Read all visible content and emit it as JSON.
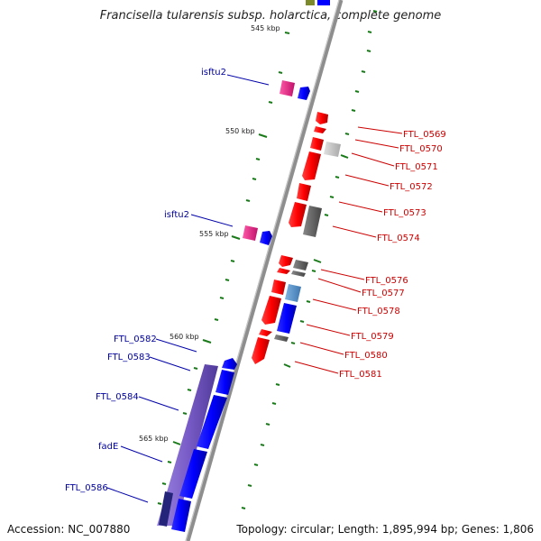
{
  "title": "Francisella tularensis subsp. holarctica, complete genome",
  "accession_label": "Accession: NC_007880",
  "topology_label": "Topology: circular; Length: 1,895,994 bp; Genes: 1,806",
  "colors": {
    "plus_strand": "#0000ff",
    "minus_strand": "#ff0000",
    "plus_label": "#000099",
    "minus_label": "#cc0000",
    "tick": "#1a7a1a",
    "operon": "#7a5cc8",
    "insertion": "#e0207a",
    "backbone": "#888888"
  },
  "ticks": [
    "545 kbp",
    "550 kbp",
    "555 kbp",
    "560 kbp",
    "565 kbp"
  ],
  "plus_labels": [
    "isftu2",
    "isftu2",
    "FTL_0582",
    "FTL_0583",
    "FTL_0584",
    "fadE",
    "FTL_0586"
  ],
  "minus_labels": [
    "FTL_0569",
    "FTL_0570",
    "FTL_0571",
    "FTL_0572",
    "FTL_0573",
    "FTL_0574",
    "FTL_0576",
    "FTL_0577",
    "FTL_0578",
    "FTL_0579",
    "FTL_0580",
    "FTL_0581"
  ]
}
